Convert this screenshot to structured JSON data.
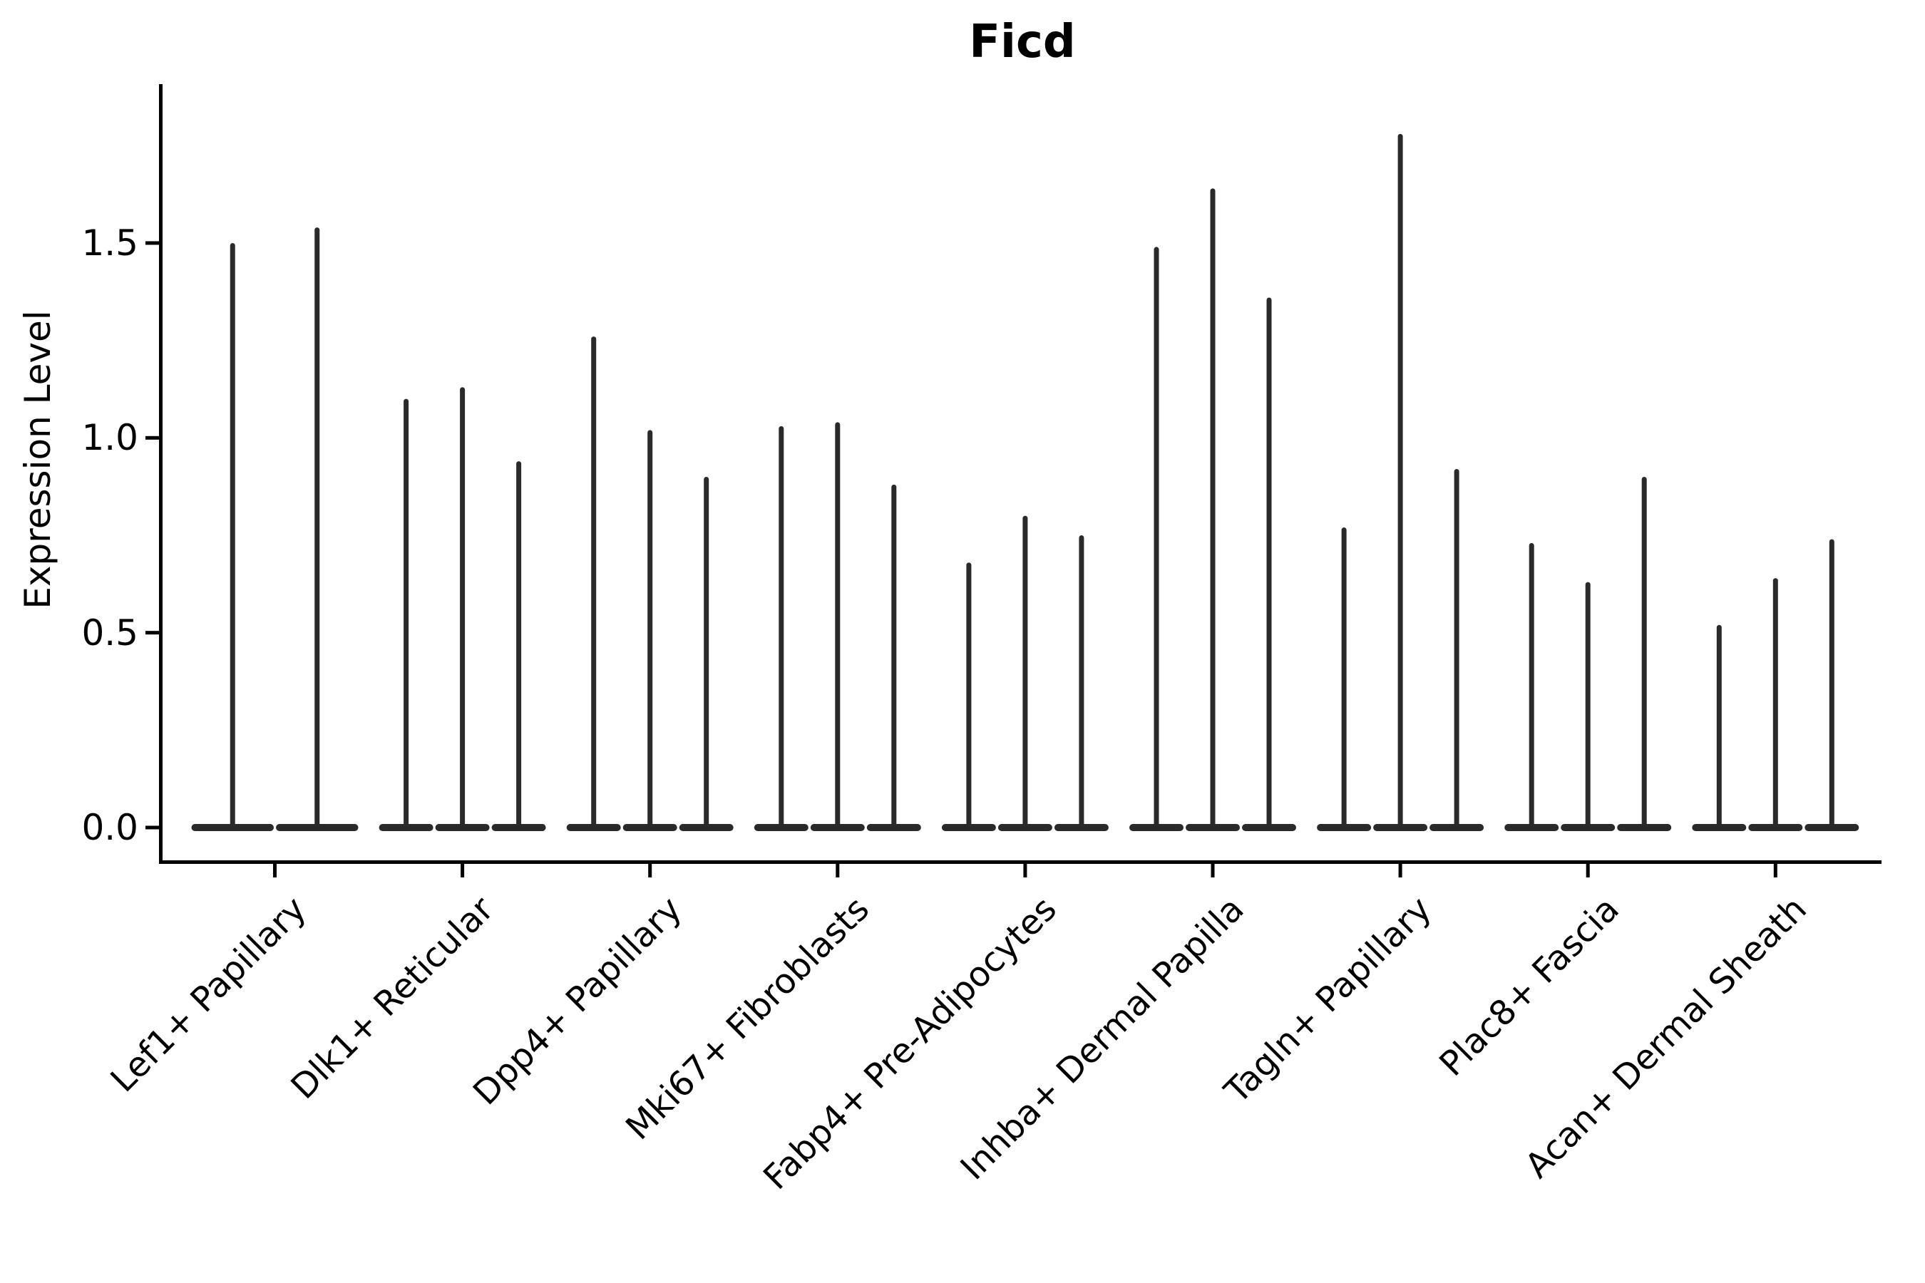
{
  "figure": {
    "title": "Ficd",
    "ylabel": "Expression Level"
  },
  "chart_data": {
    "type": "violin",
    "title": "Ficd",
    "xlabel": "",
    "ylabel": "Expression Level",
    "categories": [
      "Lef1+ Papillary",
      "Dlk1+ Reticular",
      "Dpp4+ Papillary",
      "Mki67+ Fibroblasts",
      "Fabp4+ Pre-Adipocytes",
      "Inhba+ Dermal Papilla",
      "Tagln+ Papillary",
      "Plac8+ Fascia",
      "Acan+ Dermal Sheath"
    ],
    "violins_per_category": [
      2,
      3,
      3,
      3,
      3,
      3,
      3,
      3,
      3
    ],
    "violin_maxima": [
      [
        1.5,
        1.54
      ],
      [
        1.1,
        1.13,
        0.94
      ],
      [
        1.26,
        1.02,
        0.9
      ],
      [
        1.03,
        1.04,
        0.88
      ],
      [
        0.68,
        0.8,
        0.75
      ],
      [
        1.49,
        1.64,
        1.36
      ],
      [
        0.77,
        1.78,
        0.92
      ],
      [
        0.73,
        0.63,
        0.9
      ],
      [
        0.52,
        0.64,
        0.74
      ]
    ],
    "violin_min": 0.0,
    "shape_note": "needle violins: dense mass at 0 with thin spike to maximum",
    "yticks": [
      0.0,
      0.5,
      1.0,
      1.5
    ],
    "ylim": [
      -0.08,
      1.91
    ],
    "grid": false,
    "legend": "none",
    "violin_color": "#2a2a2a",
    "axis_color": "#000000"
  }
}
